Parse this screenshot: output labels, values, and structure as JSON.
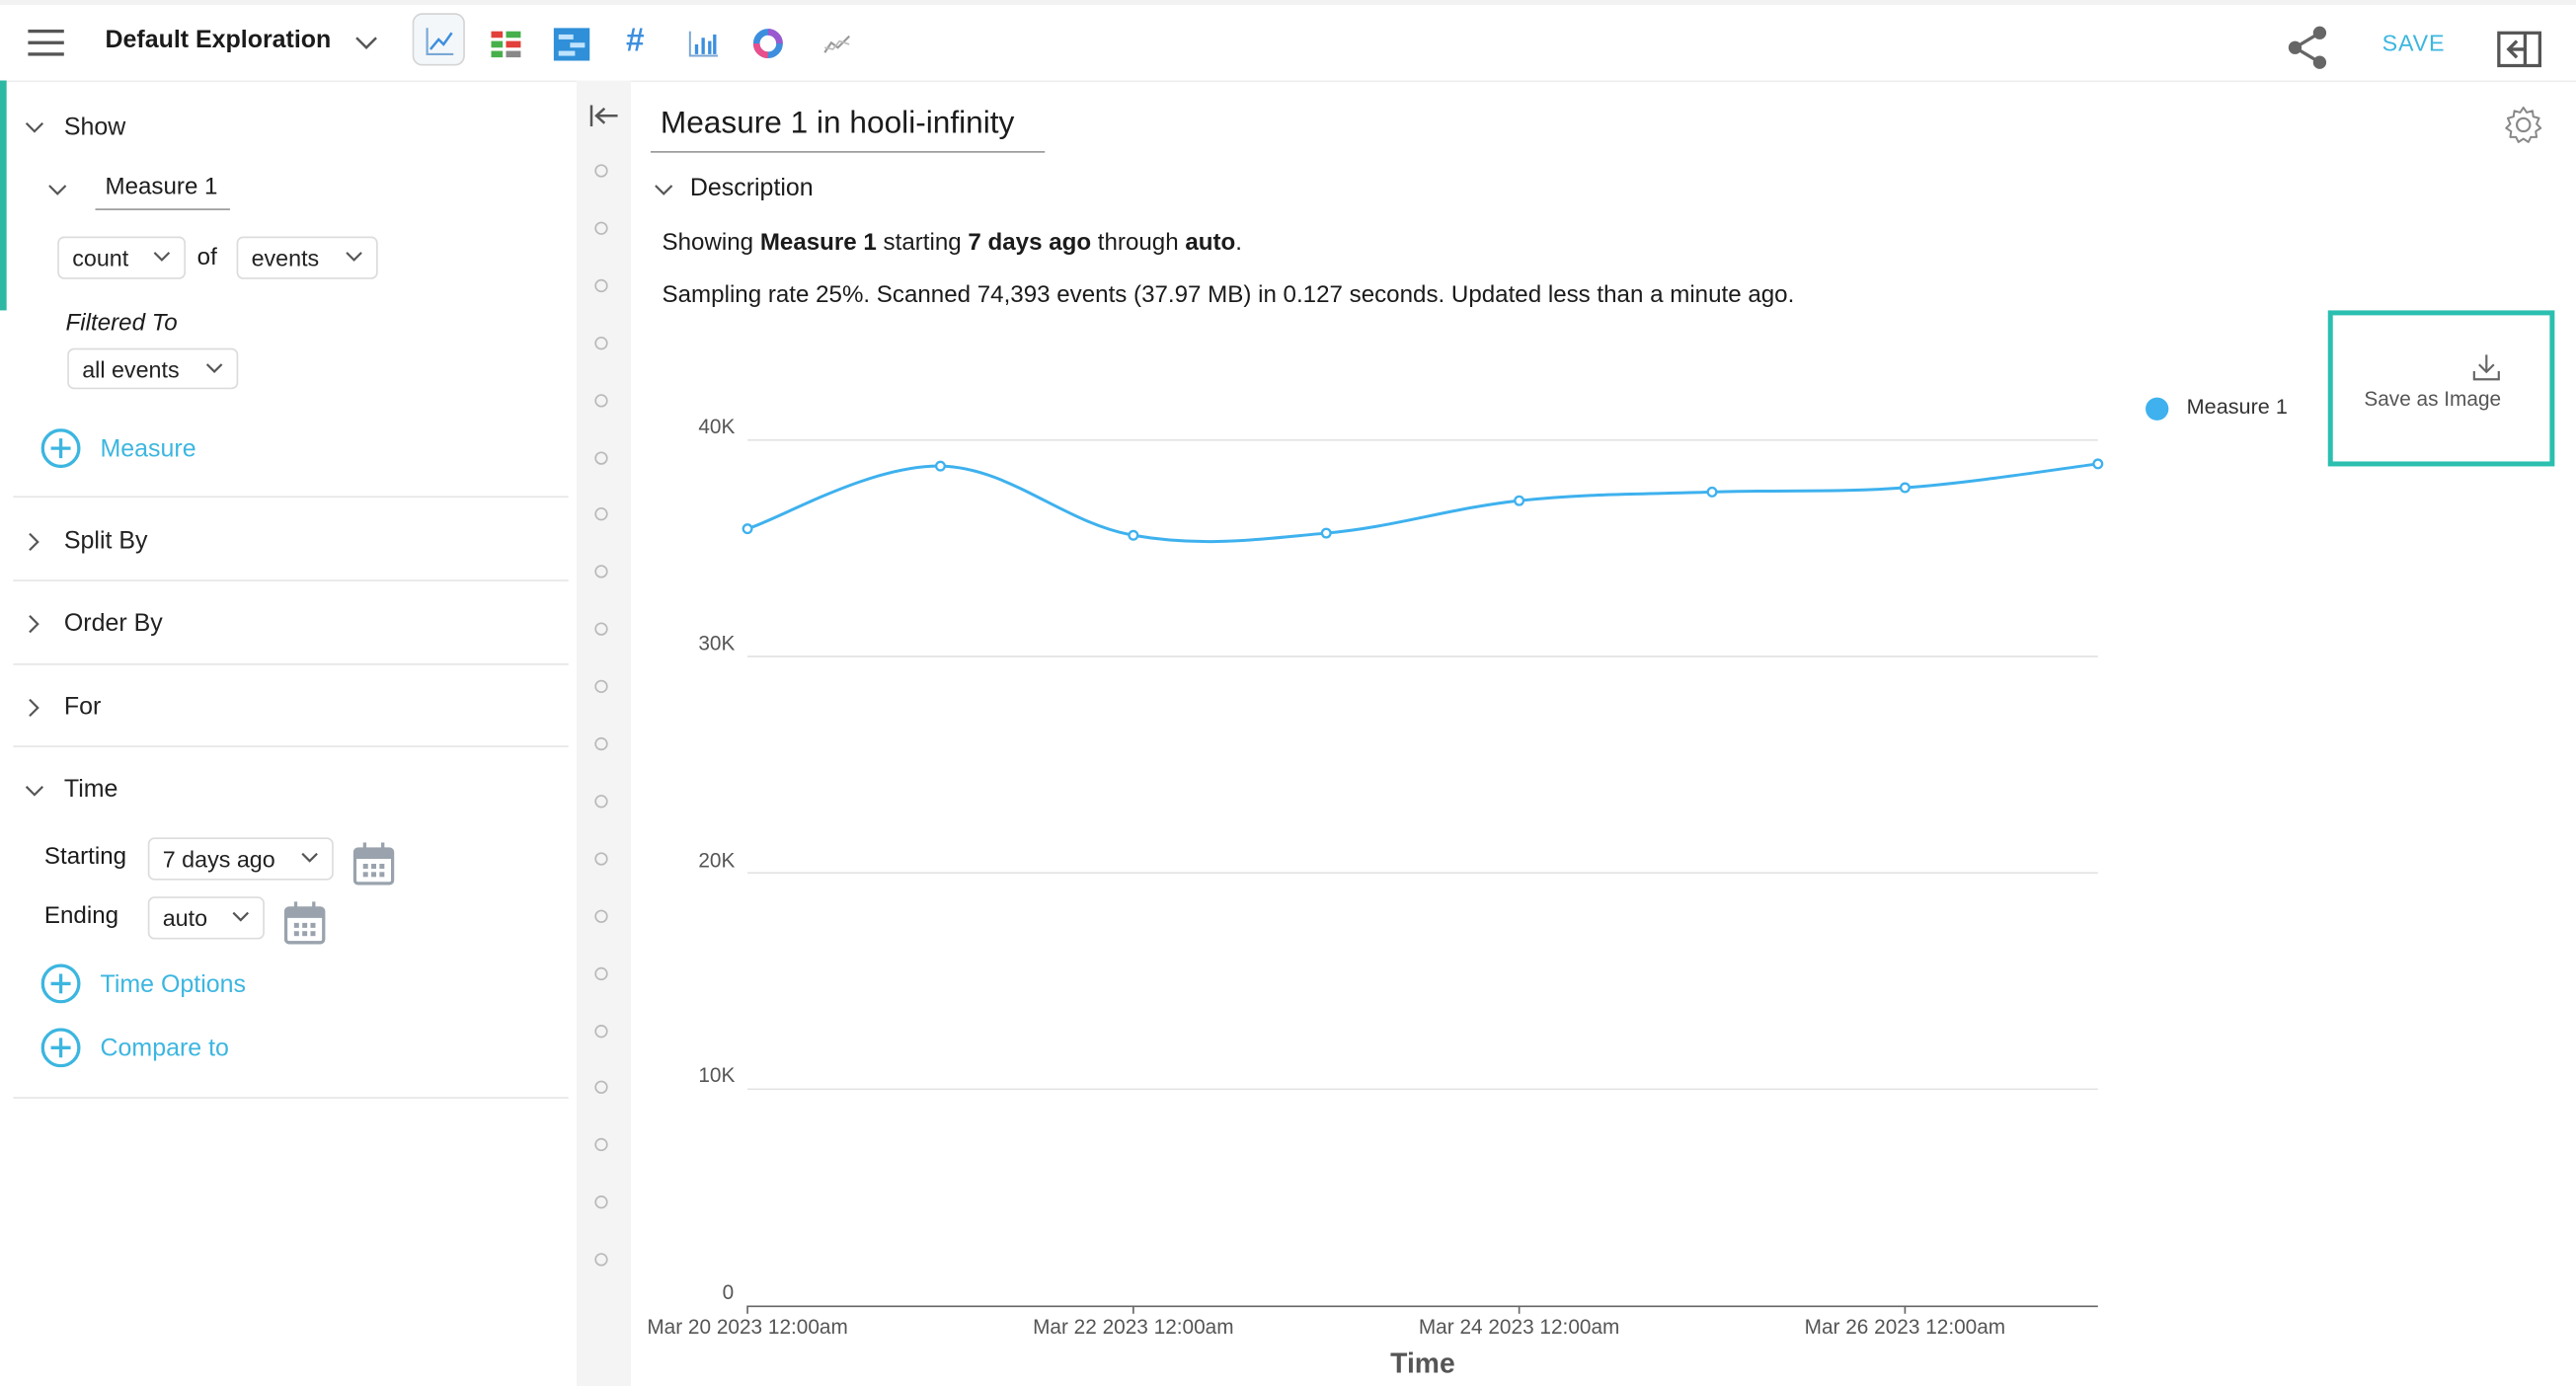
{
  "topbar": {
    "exploration_title": "Default Exploration",
    "save_label": "SAVE"
  },
  "sidebar": {
    "show_label": "Show",
    "measure_name": "Measure 1",
    "aggregate_value": "count",
    "of_label": "of",
    "field_value": "events",
    "filtered_label": "Filtered To",
    "filter_value": "all events",
    "add_measure_label": "Measure",
    "split_by_label": "Split By",
    "order_by_label": "Order By",
    "for_label": "For",
    "time_label": "Time",
    "starting_label": "Starting",
    "starting_value": "7 days ago",
    "ending_label": "Ending",
    "ending_value": "auto",
    "time_options_label": "Time Options",
    "compare_to_label": "Compare to"
  },
  "main": {
    "chart_title": "Measure 1 in hooli-infinity",
    "description_label": "Description",
    "desc_showing": "Showing ",
    "desc_measure": "Measure 1",
    "desc_starting": " starting ",
    "desc_start": "7 days ago",
    "desc_through": " through ",
    "desc_end": "auto",
    "desc_period": ".",
    "sampling_text": "Sampling rate 25%. Scanned 74,393 events (37.97 MB) in 0.127 seconds. Updated less than a minute ago.",
    "save_image_label": "Save as Image",
    "accent_color": "#2bbfb0"
  },
  "chart_data": {
    "type": "line",
    "xlabel": "Time",
    "ylabel": "",
    "ylim": [
      0,
      40000
    ],
    "yticks": [
      "0",
      "10K",
      "20K",
      "30K",
      "40K"
    ],
    "ytick_values": [
      0,
      10000,
      20000,
      30000,
      40000
    ],
    "xtick_labels": [
      "Mar 20 2023 12:00am",
      "Mar 22 2023 12:00am",
      "Mar 24 2023 12:00am",
      "Mar 26 2023 12:00am"
    ],
    "xtick_index": [
      0,
      2,
      4,
      6
    ],
    "x": [
      "Mar 20 2023",
      "Mar 21 2023",
      "Mar 22 2023",
      "Mar 23 2023",
      "Mar 24 2023",
      "Mar 25 2023",
      "Mar 26 2023",
      "Mar 27 2023"
    ],
    "series": [
      {
        "name": "Measure 1",
        "color": "#3eb1ee",
        "values": [
          35900,
          38800,
          35600,
          35700,
          37200,
          37600,
          37800,
          38900
        ]
      }
    ],
    "legend_position": "top-right",
    "grid": true
  }
}
